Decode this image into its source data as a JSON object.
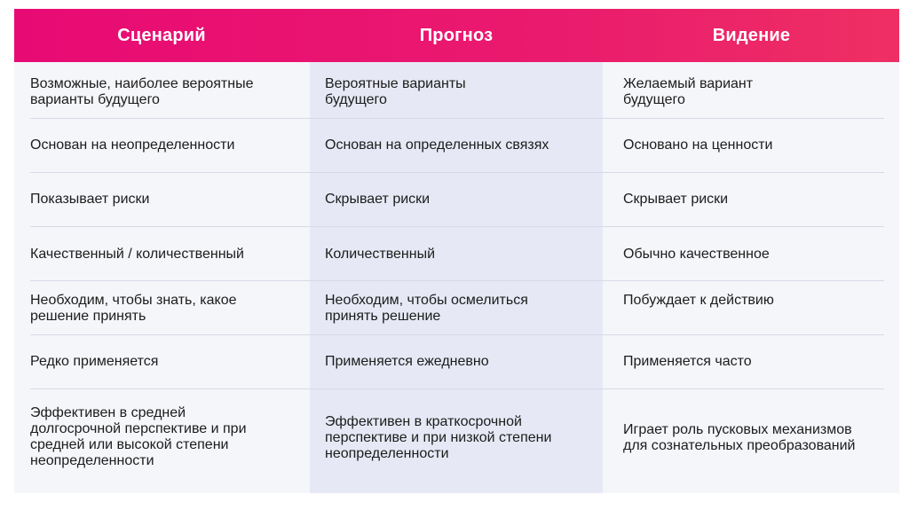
{
  "headers": [
    "Сценарий",
    "Прогноз",
    "Видение"
  ],
  "rows": [
    [
      "Возможные, наиболее вероятные варианты будущего",
      "Вероятные варианты будущего",
      "Желаемый вариант будущего"
    ],
    [
      "Основан на неопределенности",
      "Основан на определенных связях",
      "Основано на ценности"
    ],
    [
      "Показывает риски",
      "Скрывает риски",
      "Скрывает риски"
    ],
    [
      "Качественный / количественный",
      "Количественный",
      "Обычно качественное"
    ],
    [
      "Необходим, чтобы знать, какое решение принять",
      "Необходим, чтобы осмелиться принять решение",
      "Побуждает к действию"
    ],
    [
      "Редко применяется",
      "Применяется ежедневно",
      "Применяется часто"
    ],
    [
      "Эффективен в средней долгосрочной перспективе и при средней или высокой степени неопределенности",
      "Эффективен в краткосрочной перспективе и при низкой степени неопределенности",
      "Играет роль пусковых механизмов для сознательных преобразований"
    ]
  ],
  "colors": {
    "header_start": "#e80a74",
    "header_end": "#ee2f63",
    "header_text": "#ffffff",
    "table_bg": "#f5f6fa",
    "middle_column_bg": "#e6e9f5",
    "divider": "#d7dae6",
    "text": "#1c1c1c"
  }
}
